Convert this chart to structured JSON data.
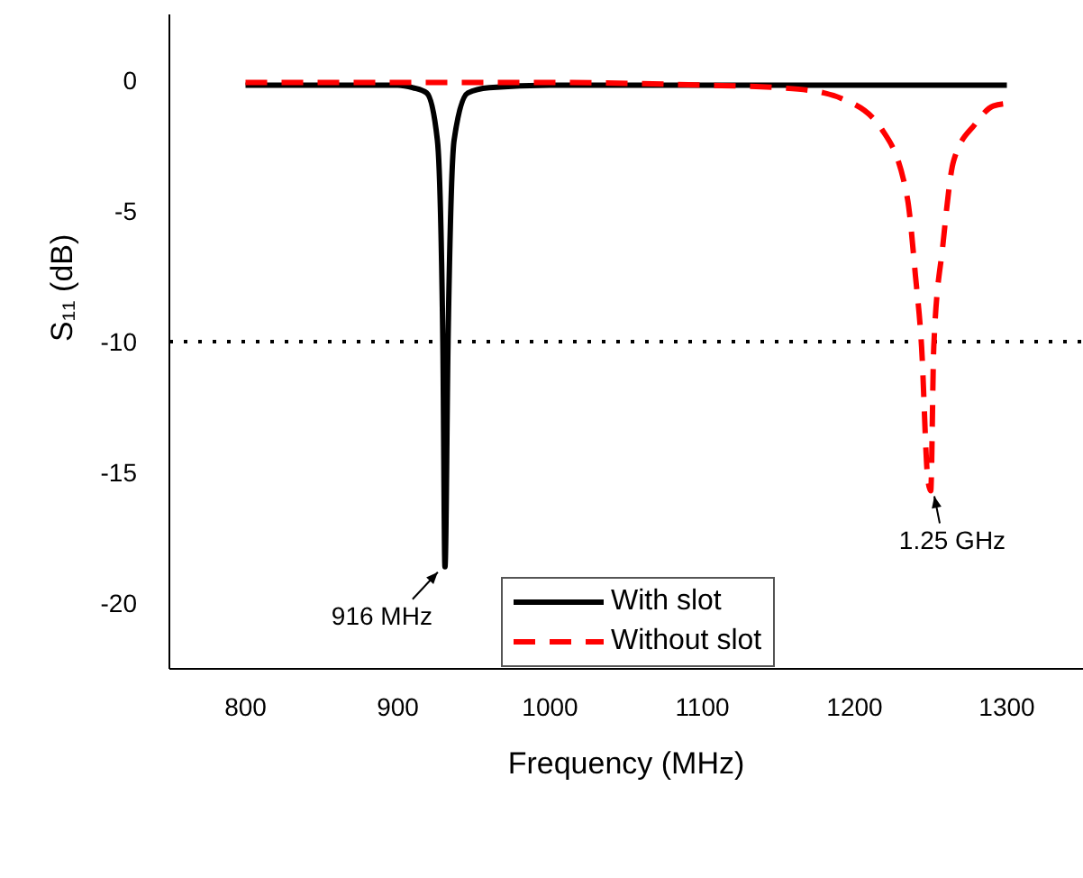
{
  "chart_data": {
    "type": "line",
    "xlabel": "Frequency (MHz)",
    "ylabel": "S₁₁ (dB)",
    "xlim": [
      750,
      1350
    ],
    "xticks": [
      800,
      900,
      1000,
      1100,
      1200,
      1300
    ],
    "ylim": [
      -22.5,
      2.5
    ],
    "yticks": [
      -20,
      -15,
      -10,
      -5,
      0
    ],
    "series": [
      {
        "name": "With slot",
        "color": "#000000",
        "line_style": "solid",
        "x": [
          800,
          850,
          900,
          910,
          919,
          926,
          929.6,
          931,
          933,
          937,
          946,
          960,
          1000,
          1100,
          1200,
          1300
        ],
        "values": [
          -0.2,
          -0.2,
          -0.2,
          -0.3,
          -0.5,
          -2.3,
          -10,
          -18.6,
          -10,
          -2.3,
          -0.5,
          -0.3,
          -0.2,
          -0.2,
          -0.2,
          -0.2
        ]
      },
      {
        "name": "Without slot",
        "color": "#ff0000",
        "line_style": "dashed",
        "x": [
          800,
          900,
          1000,
          1100,
          1150,
          1180,
          1191,
          1218,
          1234.6,
          1240,
          1244,
          1248,
          1250,
          1252,
          1258,
          1265,
          1279,
          1291,
          1300
        ],
        "values": [
          -0.1,
          -0.1,
          -0.1,
          -0.2,
          -0.3,
          -0.5,
          -0.7,
          -1.9,
          -4.5,
          -7.5,
          -10.2,
          -15.2,
          -15.7,
          -10.2,
          -6.3,
          -3.1,
          -1.7,
          -1,
          -0.9
        ]
      }
    ],
    "ref_lines": [
      {
        "axis": "y",
        "value": -10,
        "color": "#000000",
        "line_style": "dotted"
      }
    ],
    "annotations": [
      {
        "text": "916 MHz",
        "x": 931,
        "y": -18.6
      },
      {
        "text": "1.25 GHz",
        "x": 1250,
        "y": -15.7
      }
    ],
    "legend": "bottom",
    "marker": "none"
  }
}
